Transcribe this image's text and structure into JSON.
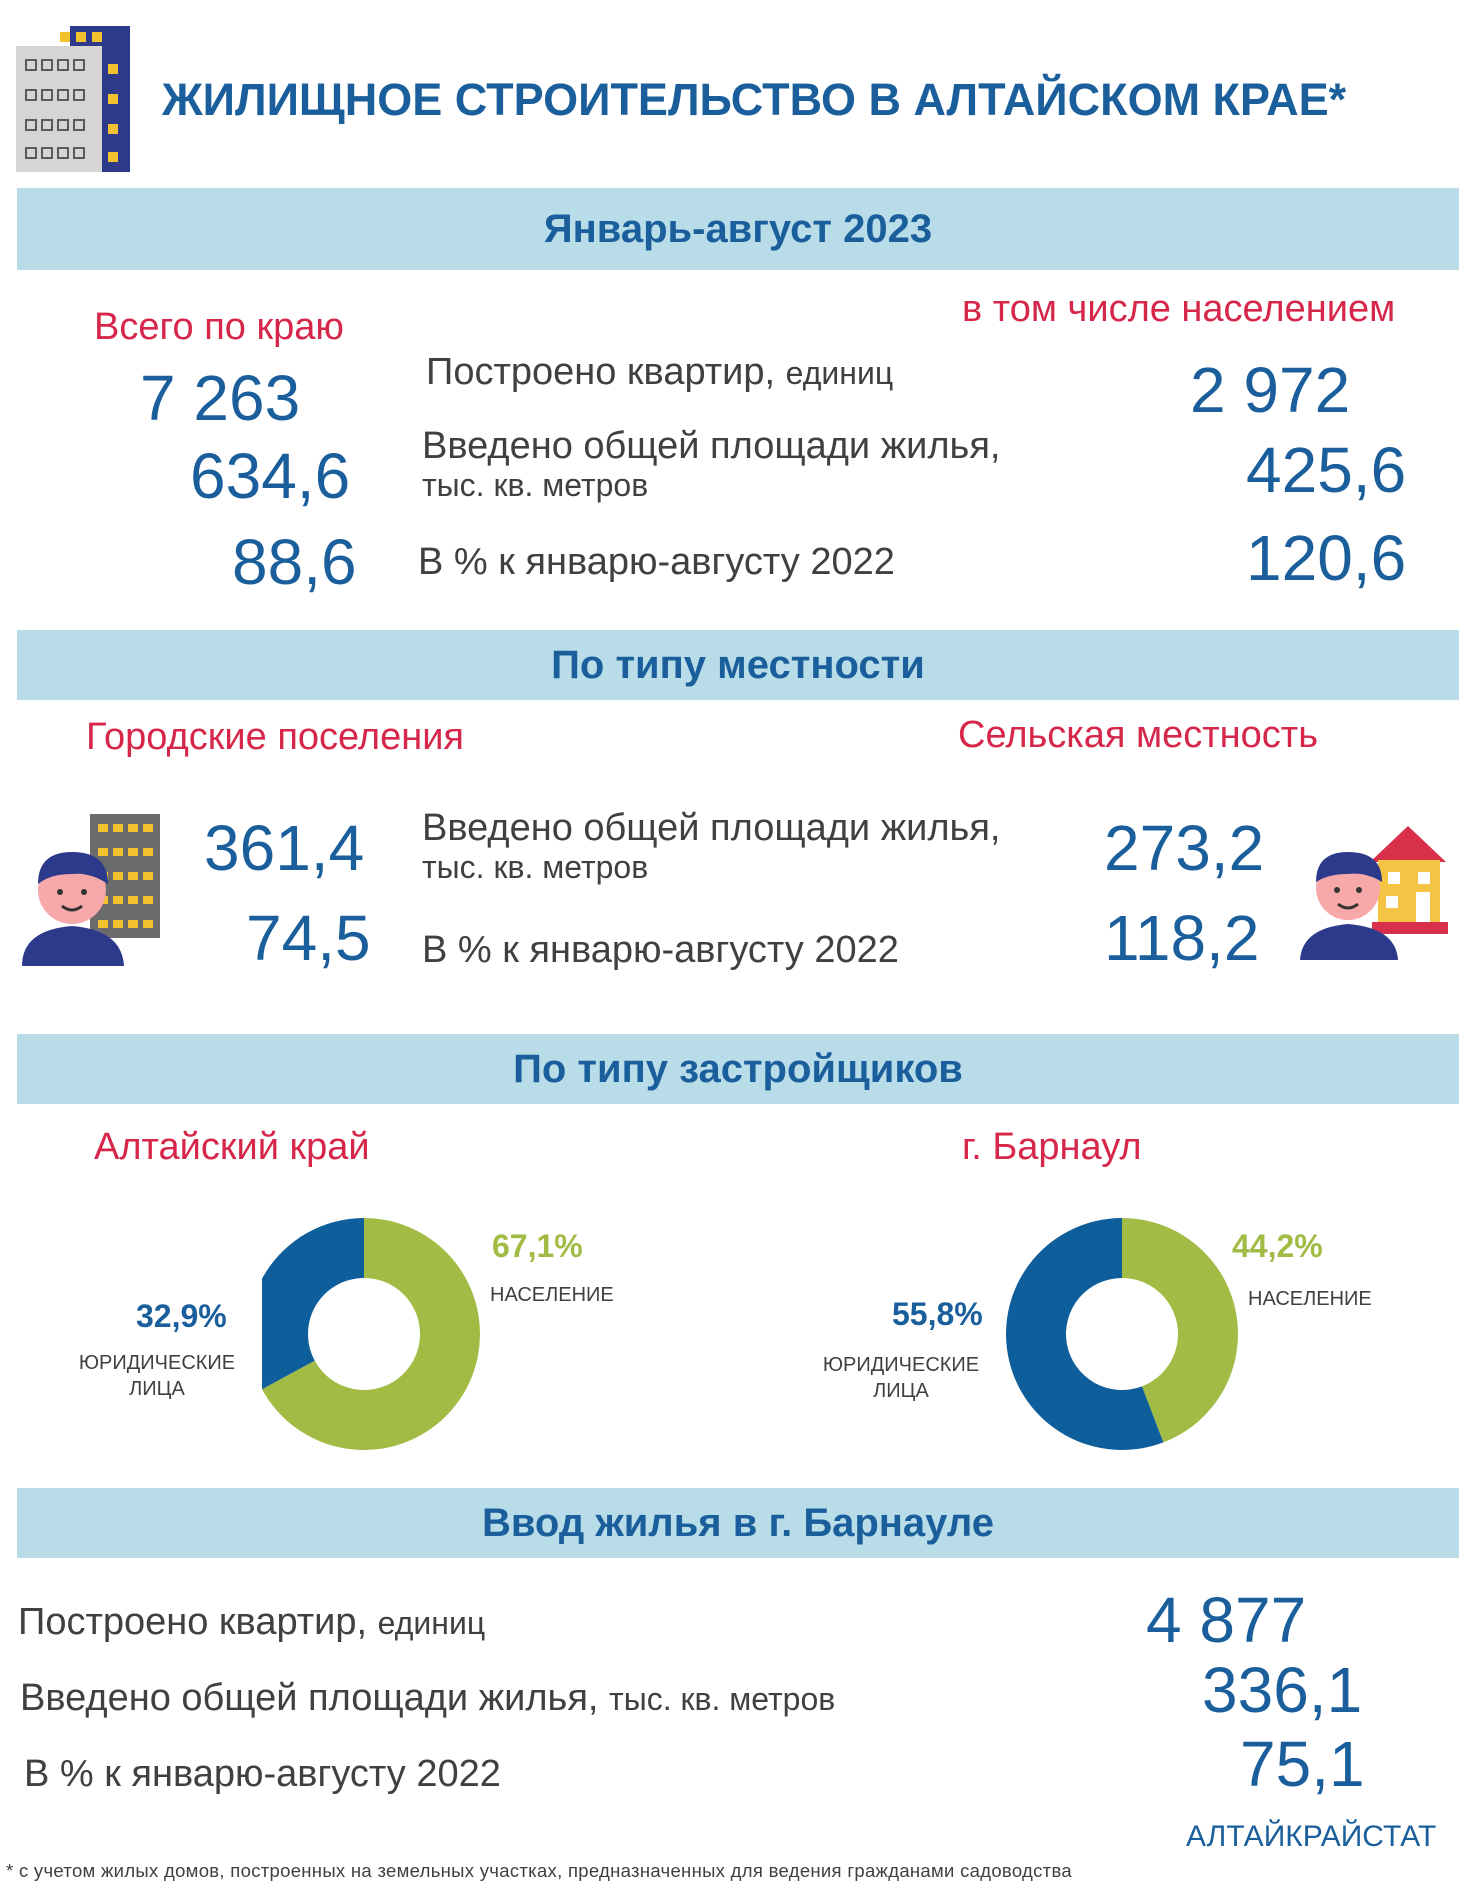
{
  "header": {
    "title": "ЖИЛИЩНОЕ СТРОИТЕЛЬСТВО В АЛТАЙСКОМ КРАЕ*"
  },
  "section1": {
    "band": "Январь-август 2023",
    "left_heading": "Всего по краю",
    "right_heading": "в том числе населением",
    "rows": [
      {
        "label": "Построено квартир,",
        "unit": "единиц",
        "total": "7 263",
        "population": "2 972"
      },
      {
        "label": "Введено общей площади жилья,",
        "unit": "тыс. кв. метров",
        "total": "634,6",
        "population": "425,6"
      },
      {
        "label": "В % к январю-августу 2022",
        "unit": "",
        "total": "88,6",
        "population": "120,6"
      }
    ]
  },
  "section2": {
    "band": "По типу местности",
    "urban_heading": "Городские поселения",
    "rural_heading": "Сельская местность",
    "area_label": "Введено общей площади жилья,",
    "area_unit": "тыс. кв. метров",
    "pct_label": "В % к январю-августу 2022",
    "urban_area": "361,4",
    "urban_pct": "74,5",
    "rural_area": "273,2",
    "rural_pct": "118,2"
  },
  "section3": {
    "band": "По типу застройщиков",
    "left_heading": "Алтайский край",
    "right_heading": "г. Барнаул"
  },
  "chart_data": [
    {
      "type": "pie",
      "title": "Алтайский край",
      "categories": [
        "НАСЕЛЕНИЕ",
        "ЮРИДИЧЕСКИЕ ЛИЦА"
      ],
      "values": [
        67.1,
        32.9
      ],
      "labels": [
        "67,1%",
        "32,9%"
      ],
      "cat_lines": [
        [
          "НАСЕЛЕНИЕ"
        ],
        [
          "ЮРИДИЧЕСКИЕ",
          "ЛИЦА"
        ]
      ],
      "colors": [
        "#a2bb45",
        "#0f5e9c"
      ]
    },
    {
      "type": "pie",
      "title": "г. Барнаул",
      "categories": [
        "НАСЕЛЕНИЕ",
        "ЮРИДИЧЕСКИЕ ЛИЦА"
      ],
      "values": [
        44.2,
        55.8
      ],
      "labels": [
        "44,2%",
        "55,8%"
      ],
      "cat_lines": [
        [
          "НАСЕЛЕНИЕ"
        ],
        [
          "ЮРИДИЧЕСКИЕ",
          "ЛИЦА"
        ]
      ],
      "colors": [
        "#a2bb45",
        "#0f5e9c"
      ]
    }
  ],
  "section4": {
    "band": "Ввод жилья в г. Барнауле",
    "rows": [
      {
        "label": "Построено квартир,",
        "unit": "единиц",
        "value": "4 877"
      },
      {
        "label": "Введено общей площади жилья,",
        "unit": "тыс. кв. метров",
        "value": "336,1"
      },
      {
        "label": "В % к январю-августу 2022",
        "unit": "",
        "value": "75,1"
      }
    ]
  },
  "footer": {
    "source": "АЛТАЙКРАЙСТАТ",
    "note": "* с учетом жилых домов, построенных на земельных участках, предназначенных для ведения гражданами садоводства"
  },
  "colors": {
    "accent_blue": "#1a5f9c",
    "accent_red": "#d6264a",
    "band": "#b8dce8",
    "green": "#a2bb45",
    "navy": "#0f5e9c"
  },
  "icons": [
    "apartment-building-icon",
    "person-with-apartment-icon",
    "person-with-house-icon"
  ]
}
